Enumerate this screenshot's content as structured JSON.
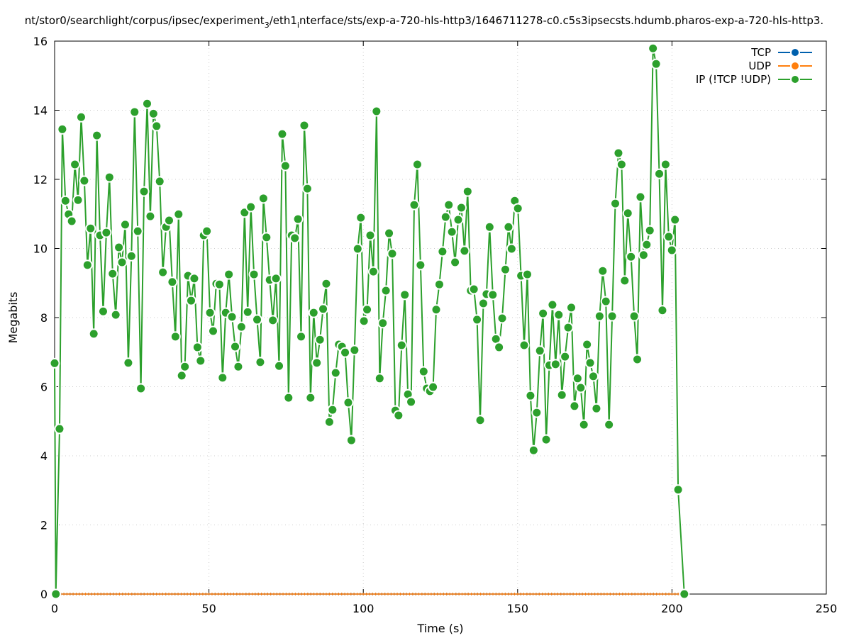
{
  "chart_data": {
    "type": "line",
    "title_parts": [
      "nt/stor0/searchlight/corpus/ipsec/experiment",
      "3",
      "/eth1",
      "i",
      "nterface/sts/exp-a-720-hls-http3/1646711278-c0.c5s3ipsecsts.hdumb.pharos-exp-a-720-hls-http3."
    ],
    "xlabel": "Time (s)",
    "ylabel": "Megabits",
    "xlim": [
      0,
      250
    ],
    "ylim": [
      0,
      16
    ],
    "xticks": [
      0,
      50,
      100,
      150,
      200,
      250
    ],
    "yticks": [
      0,
      2,
      4,
      6,
      8,
      10,
      12,
      14,
      16
    ],
    "grid": true,
    "legend_position": "top-right",
    "series": [
      {
        "name": "TCP",
        "color": "#0060ad",
        "constant_value": 0,
        "x_range": [
          0,
          204
        ]
      },
      {
        "name": "UDP",
        "color": "#ff7f0e",
        "constant_value": 0,
        "x_range": [
          0,
          204
        ]
      },
      {
        "name": "IP (!TCP  !UDP)",
        "color": "#2ca02c",
        "head": [
          [
            0,
            6.68
          ],
          [
            0.4,
            0
          ],
          [
            1.6,
            4.78
          ]
        ],
        "body_x_first": 2.5,
        "body_x_last": 202,
        "body_values": [
          13.45,
          11.38,
          10.99,
          10.79,
          12.43,
          11.4,
          13.8,
          11.96,
          9.52,
          10.58,
          7.53,
          13.27,
          10.38,
          8.18,
          10.46,
          12.06,
          9.27,
          8.08,
          10.03,
          9.6,
          10.69,
          6.69,
          9.78,
          13.95,
          10.5,
          5.95,
          11.65,
          14.19,
          10.93,
          13.9,
          13.54,
          11.94,
          9.31,
          10.62,
          10.81,
          9.03,
          7.45,
          10.99,
          6.32,
          6.58,
          9.21,
          8.49,
          9.13,
          7.14,
          6.75,
          10.38,
          10.5,
          8.14,
          7.61,
          8.98,
          8.96,
          6.26,
          8.14,
          9.25,
          8.02,
          7.16,
          6.58,
          7.73,
          11.04,
          8.16,
          11.2,
          9.25,
          7.94,
          6.71,
          11.45,
          10.32,
          9.09,
          7.92,
          9.13,
          6.6,
          13.31,
          12.39,
          5.68,
          10.38,
          10.3,
          10.85,
          7.45,
          13.56,
          11.73,
          5.68,
          8.14,
          6.69,
          7.36,
          8.25,
          8.98,
          4.98,
          5.33,
          6.4,
          7.22,
          7.16,
          6.99,
          5.54,
          4.45,
          7.06,
          9.99,
          10.89,
          7.9,
          8.23,
          10.38,
          9.33,
          13.97,
          6.24,
          7.84,
          8.78,
          10.44,
          9.85,
          5.31,
          5.17,
          7.2,
          8.66,
          5.78,
          5.56,
          11.26,
          12.43,
          9.52,
          6.44,
          5.95,
          5.87,
          5.99,
          8.23,
          8.96,
          9.91,
          10.91,
          11.26,
          10.48,
          9.6,
          10.83,
          11.18,
          9.93,
          11.65,
          8.78,
          8.82,
          7.94,
          5.03,
          8.41,
          8.68,
          10.62,
          8.66,
          7.38,
          7.14,
          7.98,
          9.39,
          10.62,
          9.99,
          11.38,
          11.16,
          9.21,
          7.2,
          9.25,
          5.74,
          4.16,
          5.25,
          7.04,
          8.12,
          4.47,
          6.62,
          8.37,
          6.65,
          8.08,
          5.76,
          6.87,
          7.71,
          8.29,
          5.44,
          6.24,
          5.97,
          4.9,
          7.22,
          6.69,
          6.3,
          5.37,
          8.04,
          9.35,
          8.47,
          4.9,
          8.04,
          11.3,
          12.76,
          12.43,
          9.07,
          11.02,
          9.76,
          8.04,
          6.79,
          11.49,
          9.81,
          10.11,
          10.52,
          15.79,
          15.34,
          12.16,
          8.21,
          12.43,
          10.34,
          9.95,
          10.83,
          3.02
        ],
        "tail": [
          [
            204,
            0
          ]
        ]
      }
    ]
  }
}
